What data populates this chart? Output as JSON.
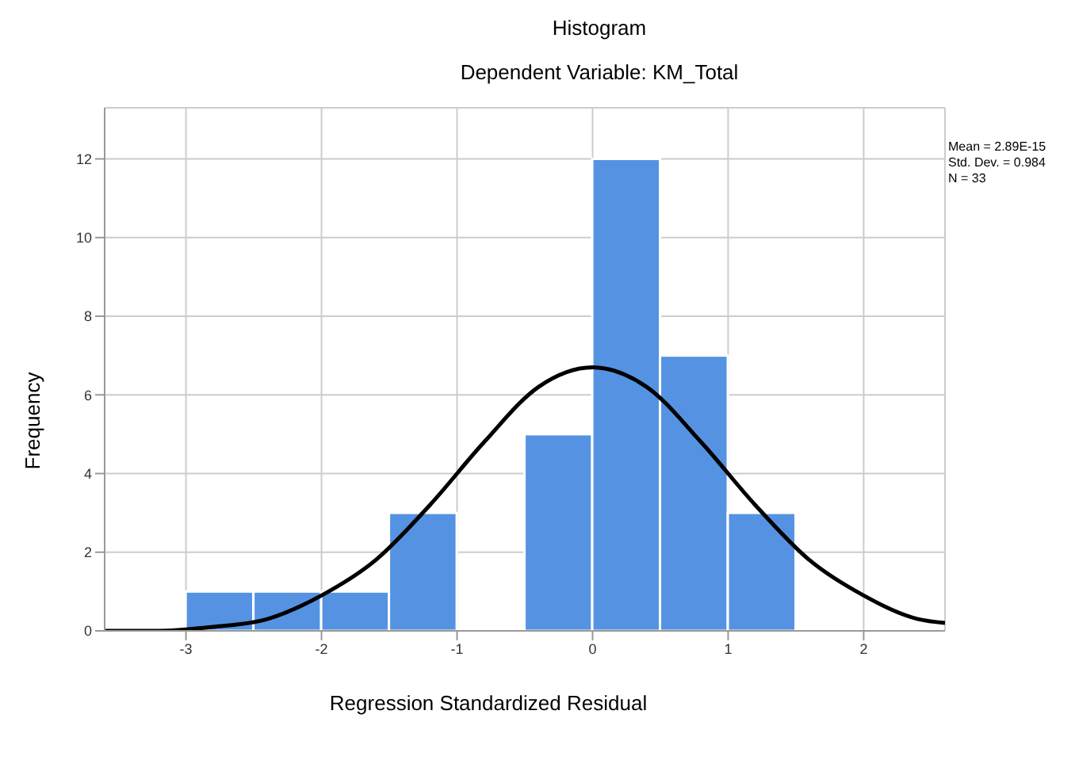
{
  "chart_data": {
    "type": "histogram",
    "title": "Histogram",
    "subtitle": "Dependent Variable: KM_Total",
    "xlabel": "Regression Standardized Residual",
    "ylabel": "Frequency",
    "bins": [
      -3,
      -2.5,
      -2,
      -1.5,
      -1,
      -0.5,
      0,
      0.5,
      1,
      1.5
    ],
    "series": [
      {
        "color": "#5593e2",
        "values": [
          1,
          1,
          1,
          3,
          0,
          5,
          12,
          7,
          3
        ]
      },
      {
        "type": "line",
        "color": "#000000",
        "x": [
          -3.6,
          -3.2,
          -2.8,
          -2.4,
          -2.0,
          -1.6,
          -1.2,
          -0.8,
          -0.4,
          0,
          0.4,
          0.8,
          1.2,
          1.6,
          2.0,
          2.4,
          2.6
        ],
        "values": [
          0.0,
          0.0,
          0.1,
          0.3,
          0.9,
          1.8,
          3.2,
          4.8,
          6.2,
          6.7,
          6.2,
          4.8,
          3.2,
          1.8,
          0.9,
          0.3,
          0.2
        ]
      }
    ],
    "xlim": [
      -3.6,
      2.6
    ],
    "xticks": [
      -3,
      -2,
      -1,
      0,
      1,
      2
    ],
    "ylim": [
      0,
      13.3
    ],
    "yticks": [
      0,
      2,
      4,
      6,
      8,
      10,
      12
    ],
    "grid": true,
    "annotations": [
      "Mean = 2.89E-15",
      "Std. Dev. = 0.984",
      "N = 33"
    ]
  }
}
